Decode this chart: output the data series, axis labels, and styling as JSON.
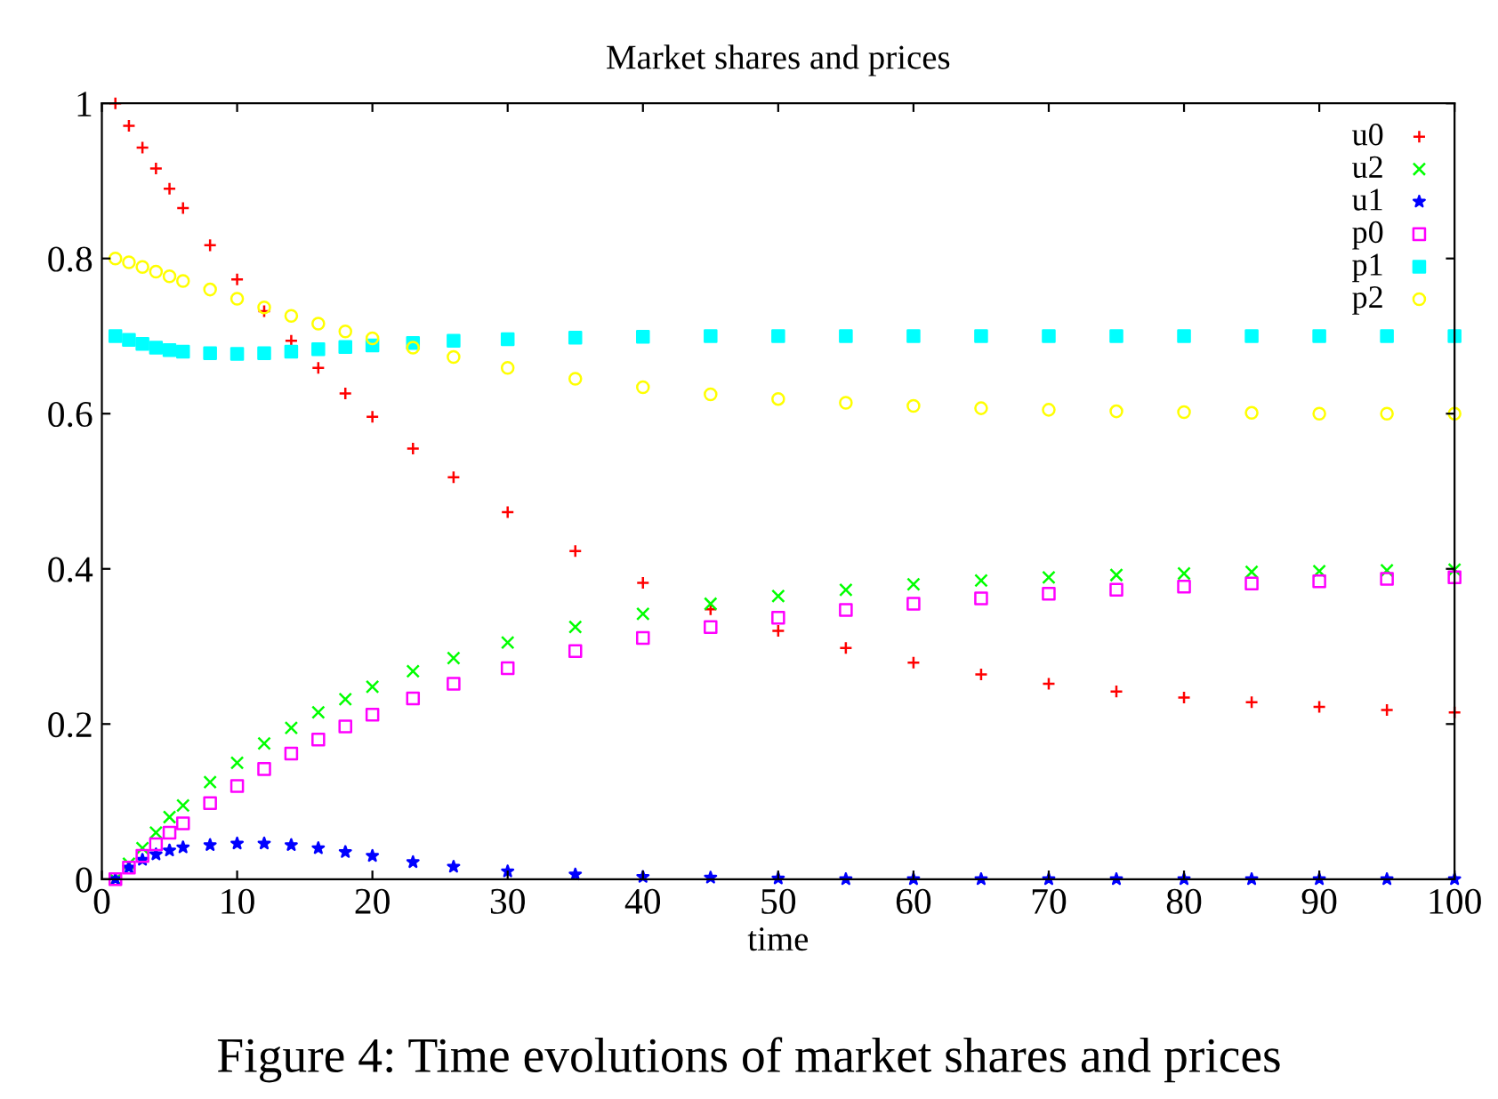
{
  "chart_data": {
    "type": "scatter",
    "title": "Market shares and prices",
    "xlabel": "time",
    "annotations": [
      "Figure 4: Time evolutions of market shares and prices"
    ],
    "x": [
      1,
      2,
      3,
      4,
      5,
      6,
      8,
      10,
      12,
      14,
      16,
      18,
      20,
      23,
      26,
      30,
      35,
      40,
      45,
      50,
      55,
      60,
      65,
      70,
      75,
      80,
      85,
      90,
      95,
      100
    ],
    "series": [
      {
        "name": "u0",
        "color": "#ff0000",
        "marker": "cross",
        "values": [
          1.0,
          0.971,
          0.943,
          0.916,
          0.89,
          0.865,
          0.817,
          0.773,
          0.732,
          0.694,
          0.659,
          0.626,
          0.596,
          0.555,
          0.518,
          0.473,
          0.423,
          0.382,
          0.348,
          0.32,
          0.298,
          0.279,
          0.264,
          0.252,
          0.242,
          0.234,
          0.228,
          0.222,
          0.218,
          0.215
        ]
      },
      {
        "name": "u2",
        "color": "#00ff00",
        "marker": "x",
        "values": [
          0,
          0.02,
          0.04,
          0.06,
          0.08,
          0.095,
          0.125,
          0.15,
          0.175,
          0.195,
          0.215,
          0.232,
          0.248,
          0.268,
          0.285,
          0.305,
          0.325,
          0.342,
          0.355,
          0.365,
          0.373,
          0.38,
          0.385,
          0.389,
          0.392,
          0.394,
          0.396,
          0.397,
          0.398,
          0.399
        ]
      },
      {
        "name": "u1",
        "color": "#0000ff",
        "marker": "star",
        "values": [
          0,
          0.015,
          0.025,
          0.032,
          0.037,
          0.041,
          0.044,
          0.046,
          0.046,
          0.044,
          0.04,
          0.035,
          0.03,
          0.022,
          0.016,
          0.01,
          0.006,
          0.003,
          0.002,
          0.001,
          0,
          0,
          0,
          0,
          0,
          0,
          0,
          0,
          0,
          0
        ]
      },
      {
        "name": "p0",
        "color": "#ff00ff",
        "marker": "square_open",
        "values": [
          0,
          0.015,
          0.03,
          0.045,
          0.06,
          0.072,
          0.098,
          0.12,
          0.142,
          0.162,
          0.18,
          0.197,
          0.212,
          0.233,
          0.252,
          0.272,
          0.294,
          0.311,
          0.325,
          0.337,
          0.347,
          0.355,
          0.362,
          0.368,
          0.373,
          0.377,
          0.381,
          0.384,
          0.387,
          0.389
        ]
      },
      {
        "name": "p1",
        "color": "#00ffff",
        "marker": "square",
        "values": [
          0.7,
          0.695,
          0.69,
          0.685,
          0.682,
          0.68,
          0.678,
          0.677,
          0.678,
          0.68,
          0.683,
          0.686,
          0.688,
          0.691,
          0.694,
          0.696,
          0.698,
          0.699,
          0.7,
          0.7,
          0.7,
          0.7,
          0.7,
          0.7,
          0.7,
          0.7,
          0.7,
          0.7,
          0.7,
          0.7
        ]
      },
      {
        "name": "p2",
        "color": "#ffff00",
        "marker": "circle_open",
        "values": [
          0.8,
          0.795,
          0.789,
          0.783,
          0.777,
          0.771,
          0.76,
          0.748,
          0.737,
          0.726,
          0.716,
          0.706,
          0.697,
          0.685,
          0.673,
          0.659,
          0.645,
          0.634,
          0.625,
          0.619,
          0.614,
          0.61,
          0.607,
          0.605,
          0.603,
          0.602,
          0.601,
          0.6,
          0.6,
          0.6
        ]
      }
    ],
    "xlim": [
      0,
      100
    ],
    "xticks": [
      0,
      10,
      20,
      30,
      40,
      50,
      60,
      70,
      80,
      90,
      100
    ],
    "ylim": [
      0,
      1
    ],
    "yticks": [
      0,
      0.2,
      0.4,
      0.6,
      0.8,
      1
    ],
    "legend": "top right",
    "grid": false
  }
}
